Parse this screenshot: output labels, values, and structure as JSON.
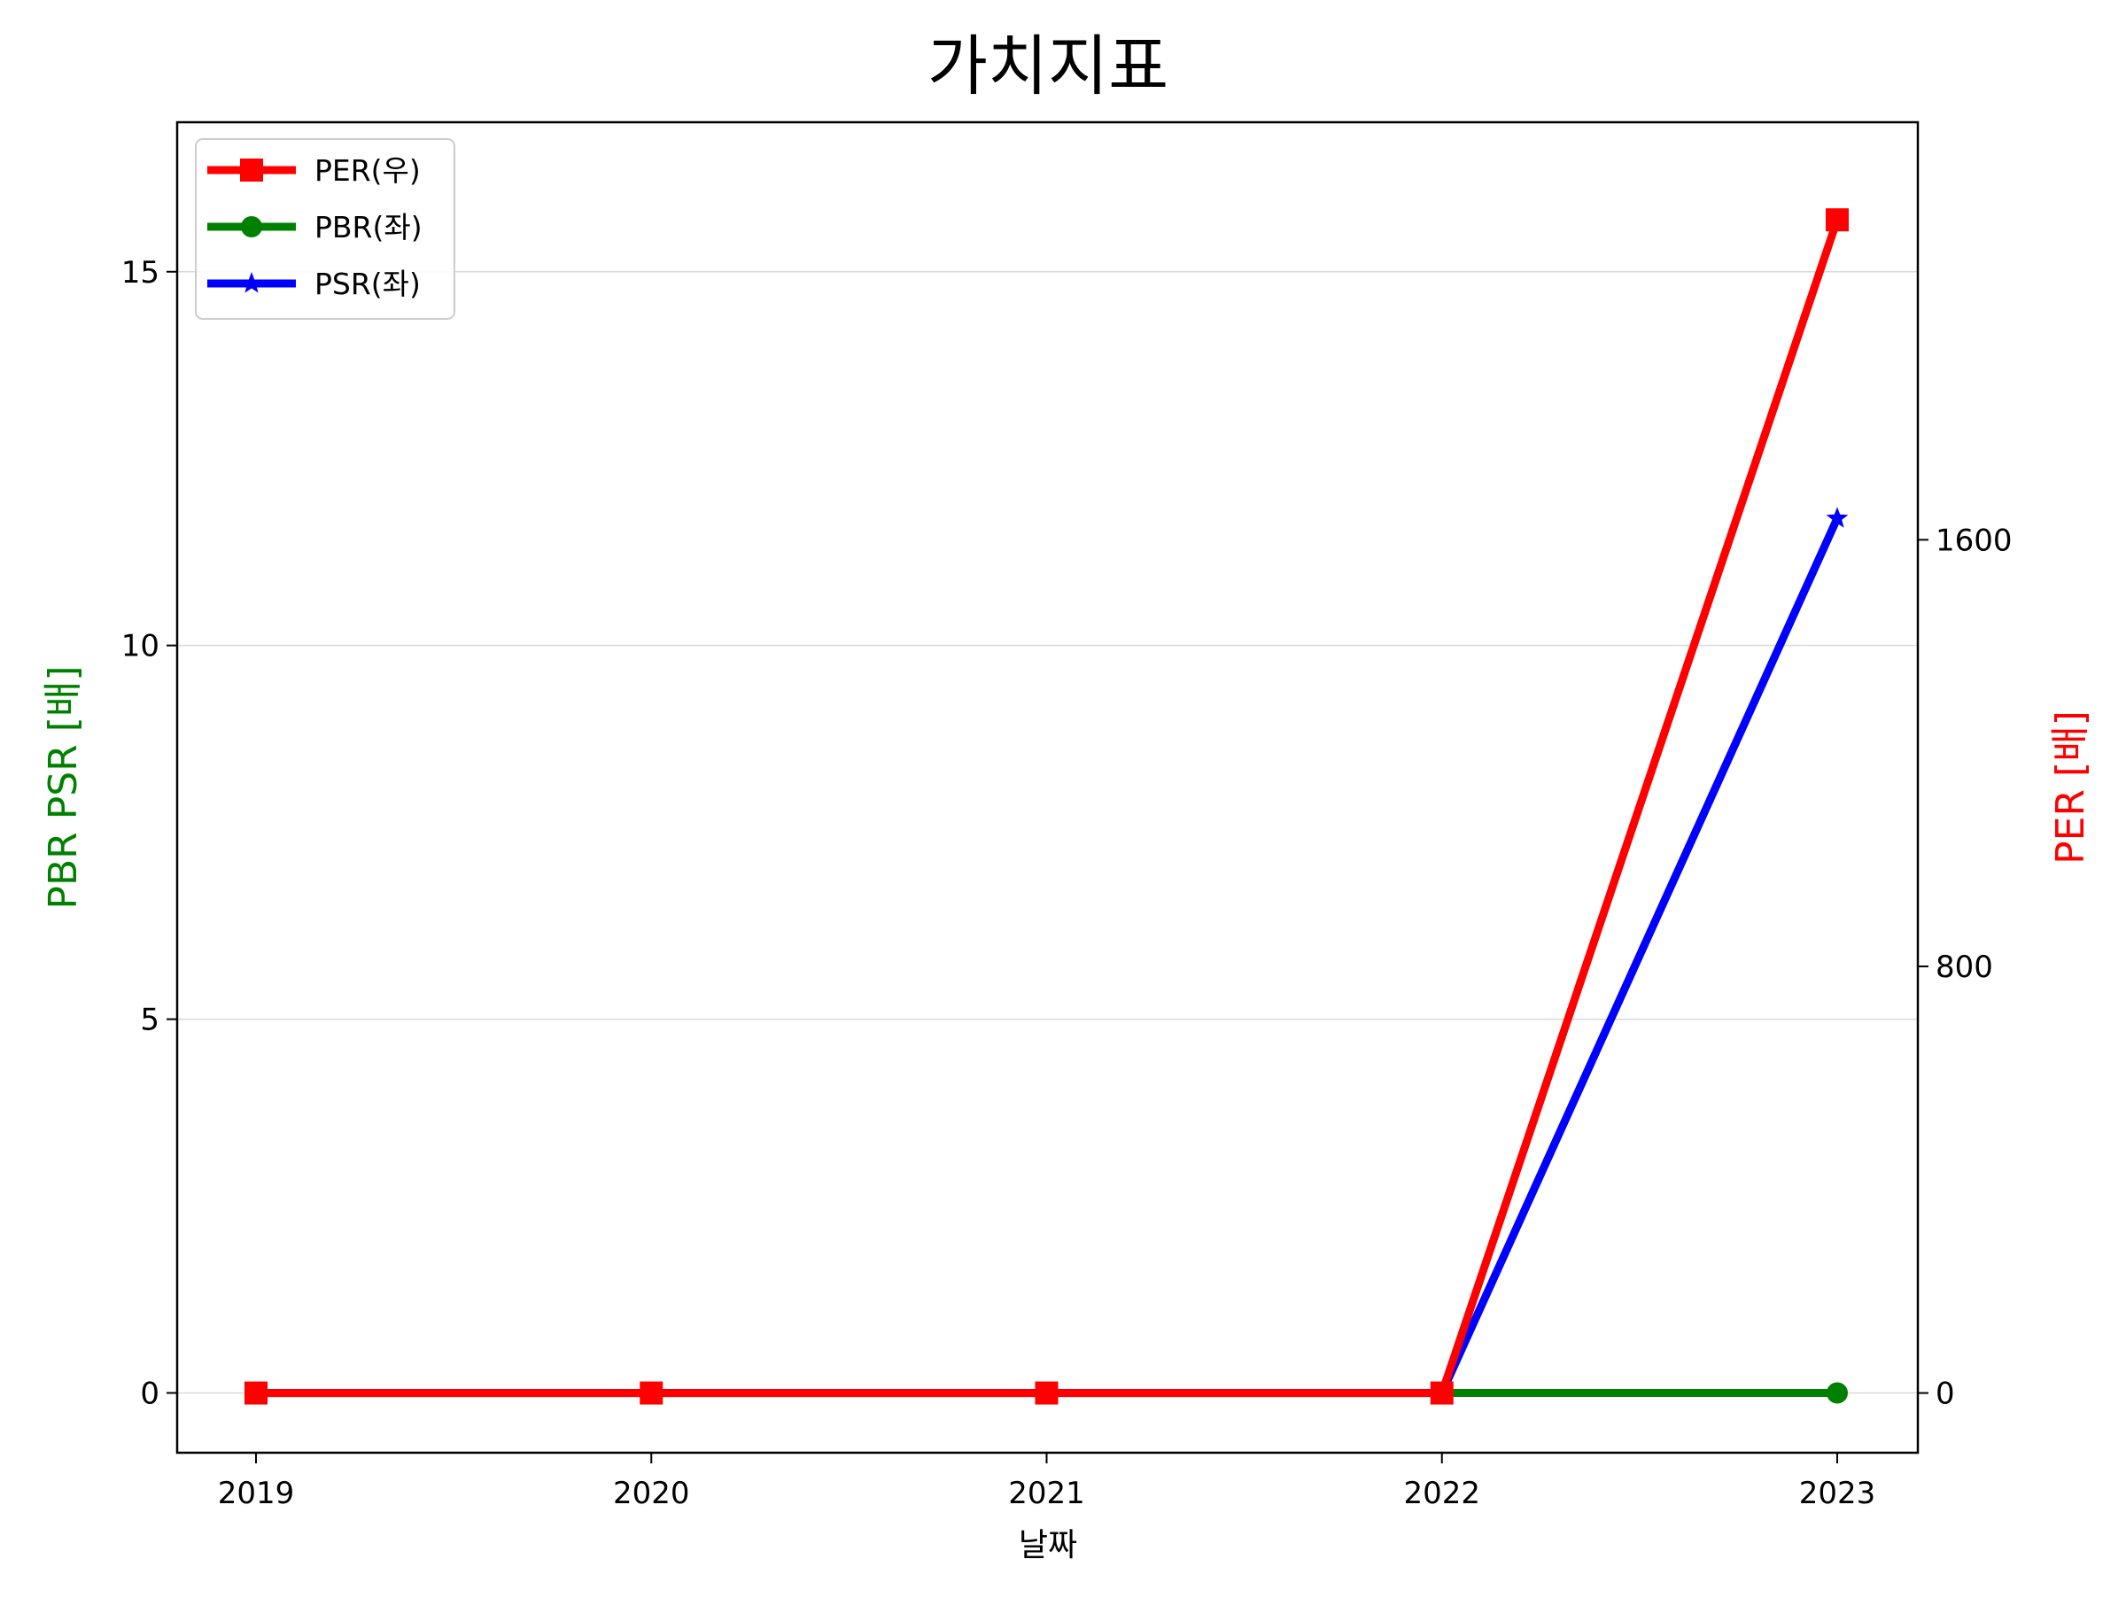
{
  "chart_data": {
    "type": "line",
    "title": "가치지표",
    "xlabel": "날짜",
    "ylabel_left": "PBR PSR [배]",
    "ylabel_right": "PER [배]",
    "x": [
      "2019",
      "2020",
      "2021",
      "2022",
      "2023"
    ],
    "left_axis": {
      "ylim": [
        -0.8,
        17
      ],
      "ticks": [
        "0",
        "5",
        "10",
        "15"
      ]
    },
    "right_axis": {
      "ylim": [
        -112,
        2383
      ],
      "ticks": [
        "0",
        "800",
        "1600"
      ]
    },
    "grid": "horizontal",
    "legend_position": "top-left",
    "series": [
      {
        "name": "PER(우)",
        "axis": "right",
        "color": "#ff0000",
        "marker": "square",
        "values": [
          0,
          0,
          0,
          0,
          2200
        ]
      },
      {
        "name": "PBR(좌)",
        "axis": "left",
        "color": "#008000",
        "marker": "circle",
        "values": [
          0,
          0,
          0,
          0,
          0
        ]
      },
      {
        "name": "PSR(좌)",
        "axis": "left",
        "color": "#0000ff",
        "marker": "star",
        "values": [
          0,
          0,
          0,
          0,
          11.7
        ]
      }
    ],
    "colors": {
      "left_label": "#008000",
      "right_label": "#ff0000"
    }
  }
}
